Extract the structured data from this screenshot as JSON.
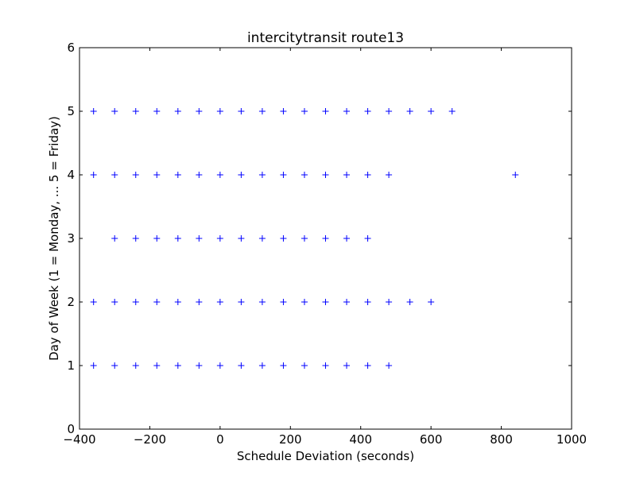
{
  "chart_data": {
    "type": "scatter",
    "title": "intercitytransit route13",
    "xlabel": "Schedule Deviation (seconds)",
    "ylabel": "Day of Week (1 = Monday, ... 5 = Friday)",
    "xlim": [
      -400,
      1000
    ],
    "ylim": [
      0,
      6
    ],
    "xticks": [
      -400,
      -200,
      0,
      200,
      400,
      600,
      800,
      1000
    ],
    "xtick_labels": [
      "−400",
      "−200",
      "0",
      "200",
      "400",
      "600",
      "800",
      "1000"
    ],
    "yticks": [
      0,
      1,
      2,
      3,
      4,
      5,
      6
    ],
    "ytick_labels": [
      "0",
      "1",
      "2",
      "3",
      "4",
      "5",
      "6"
    ],
    "grid": false,
    "marker": "+",
    "marker_color": "#0000ff",
    "series": [
      {
        "points": [
          [
            -360,
            1
          ],
          [
            -300,
            1
          ],
          [
            -240,
            1
          ],
          [
            -180,
            1
          ],
          [
            -120,
            1
          ],
          [
            -60,
            1
          ],
          [
            0,
            1
          ],
          [
            60,
            1
          ],
          [
            120,
            1
          ],
          [
            180,
            1
          ],
          [
            240,
            1
          ],
          [
            300,
            1
          ],
          [
            360,
            1
          ],
          [
            420,
            1
          ],
          [
            480,
            1
          ],
          [
            -360,
            2
          ],
          [
            -300,
            2
          ],
          [
            -240,
            2
          ],
          [
            -180,
            2
          ],
          [
            -120,
            2
          ],
          [
            -60,
            2
          ],
          [
            0,
            2
          ],
          [
            60,
            2
          ],
          [
            120,
            2
          ],
          [
            180,
            2
          ],
          [
            240,
            2
          ],
          [
            300,
            2
          ],
          [
            360,
            2
          ],
          [
            420,
            2
          ],
          [
            480,
            2
          ],
          [
            540,
            2
          ],
          [
            600,
            2
          ],
          [
            -300,
            3
          ],
          [
            -240,
            3
          ],
          [
            -180,
            3
          ],
          [
            -120,
            3
          ],
          [
            -60,
            3
          ],
          [
            0,
            3
          ],
          [
            60,
            3
          ],
          [
            120,
            3
          ],
          [
            180,
            3
          ],
          [
            240,
            3
          ],
          [
            300,
            3
          ],
          [
            360,
            3
          ],
          [
            420,
            3
          ],
          [
            -360,
            4
          ],
          [
            -300,
            4
          ],
          [
            -240,
            4
          ],
          [
            -180,
            4
          ],
          [
            -120,
            4
          ],
          [
            -60,
            4
          ],
          [
            0,
            4
          ],
          [
            60,
            4
          ],
          [
            120,
            4
          ],
          [
            180,
            4
          ],
          [
            240,
            4
          ],
          [
            300,
            4
          ],
          [
            360,
            4
          ],
          [
            420,
            4
          ],
          [
            480,
            4
          ],
          [
            840,
            4
          ],
          [
            -360,
            5
          ],
          [
            -300,
            5
          ],
          [
            -240,
            5
          ],
          [
            -180,
            5
          ],
          [
            -120,
            5
          ],
          [
            -60,
            5
          ],
          [
            0,
            5
          ],
          [
            60,
            5
          ],
          [
            120,
            5
          ],
          [
            180,
            5
          ],
          [
            240,
            5
          ],
          [
            300,
            5
          ],
          [
            360,
            5
          ],
          [
            420,
            5
          ],
          [
            480,
            5
          ],
          [
            540,
            5
          ],
          [
            600,
            5
          ],
          [
            660,
            5
          ]
        ]
      }
    ]
  }
}
